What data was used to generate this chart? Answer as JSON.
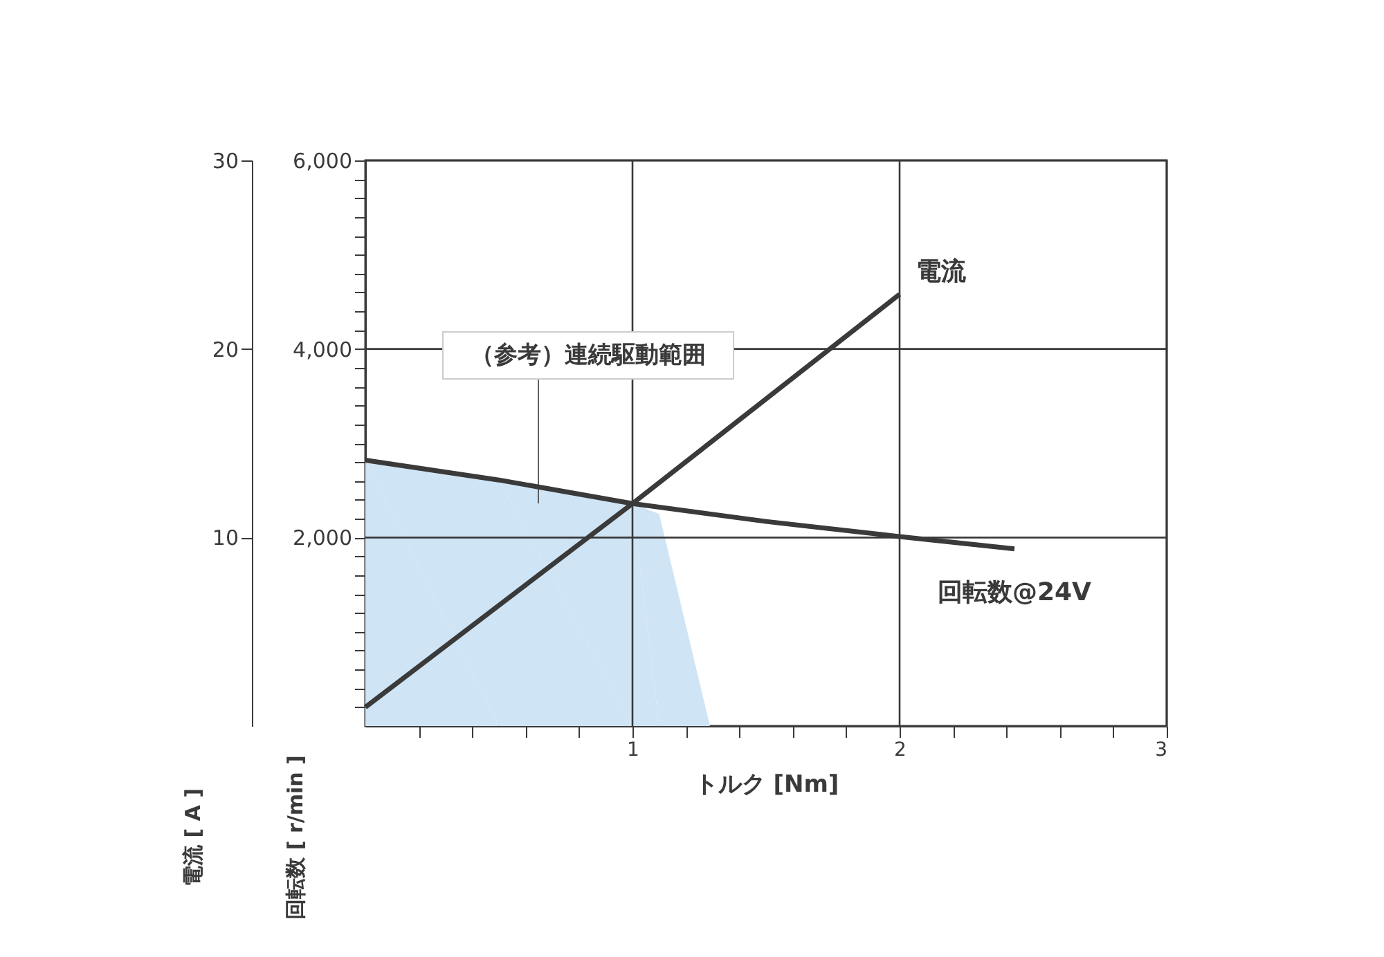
{
  "chart_data": {
    "type": "line",
    "xlabel": "トルク [Nm]",
    "ylabel": "回転数 [ r/min ]",
    "y2label": "電流 [ A ]",
    "annotations": [
      "（参考）連続駆動範囲"
    ],
    "xlim": [
      0,
      3
    ],
    "xticks": [
      {
        "value": 0.2,
        "label": null
      },
      {
        "value": 0.4,
        "label": null
      },
      {
        "value": 0.6,
        "label": null
      },
      {
        "value": 0.8,
        "label": null
      },
      1,
      {
        "value": 1.2,
        "label": null
      },
      {
        "value": 1.4,
        "label": null
      },
      {
        "value": 1.6,
        "label": null
      },
      {
        "value": 1.8,
        "label": null
      },
      2,
      {
        "value": 2.2,
        "label": null
      },
      {
        "value": 2.4,
        "label": null
      },
      {
        "value": 2.6,
        "label": null
      },
      {
        "value": 2.8,
        "label": null
      },
      3
    ],
    "ylim": [
      0,
      6000
    ],
    "yticks": [
      {
        "value": 200,
        "label": null
      },
      {
        "value": 400,
        "label": null
      },
      {
        "value": 600,
        "label": null
      },
      {
        "value": 800,
        "label": null
      },
      {
        "value": 1000,
        "label": null
      },
      {
        "value": 1200,
        "label": null
      },
      {
        "value": 1400,
        "label": null
      },
      {
        "value": 1600,
        "label": null
      },
      {
        "value": 1800,
        "label": null
      },
      {
        "value": 2000,
        "label": "2,000"
      },
      {
        "value": 2200,
        "label": null
      },
      {
        "value": 2400,
        "label": null
      },
      {
        "value": 2600,
        "label": null
      },
      {
        "value": 2800,
        "label": null
      },
      {
        "value": 3000,
        "label": null
      },
      {
        "value": 3200,
        "label": null
      },
      {
        "value": 3400,
        "label": null
      },
      {
        "value": 3600,
        "label": null
      },
      {
        "value": 3800,
        "label": null
      },
      {
        "value": 4000,
        "label": "4,000"
      },
      {
        "value": 4200,
        "label": null
      },
      {
        "value": 4400,
        "label": null
      },
      {
        "value": 4600,
        "label": null
      },
      {
        "value": 4800,
        "label": null
      },
      {
        "value": 5000,
        "label": null
      },
      {
        "value": 5200,
        "label": null
      },
      {
        "value": 5400,
        "label": null
      },
      {
        "value": 5600,
        "label": null
      },
      {
        "value": 5800,
        "label": null
      },
      {
        "value": 6000,
        "label": "6,000"
      }
    ],
    "y2lim": [
      0,
      30
    ],
    "y2ticks": [
      10,
      20,
      30
    ],
    "grid": true,
    "legend": false,
    "marker": "none",
    "line_style": "solid",
    "series": [
      {
        "type": "area",
        "color": "#cfe4f5",
        "x": [
          0,
          0.5,
          1,
          1.1,
          1.29
        ],
        "values": [
          2820,
          2610,
          2360,
          2250,
          0
        ]
      },
      {
        "name": "電流",
        "color": "#3a3a3a",
        "axis": "y2",
        "x": [
          0,
          1,
          2
        ],
        "values": [
          1,
          11.8,
          22.9
        ]
      },
      {
        "name": "回転数@24V",
        "color": "#3a3a3a",
        "x": [
          0,
          0.5,
          1,
          1.5,
          2,
          2.43
        ],
        "values": [
          2820,
          2610,
          2360,
          2170,
          2010,
          1880
        ]
      }
    ]
  }
}
